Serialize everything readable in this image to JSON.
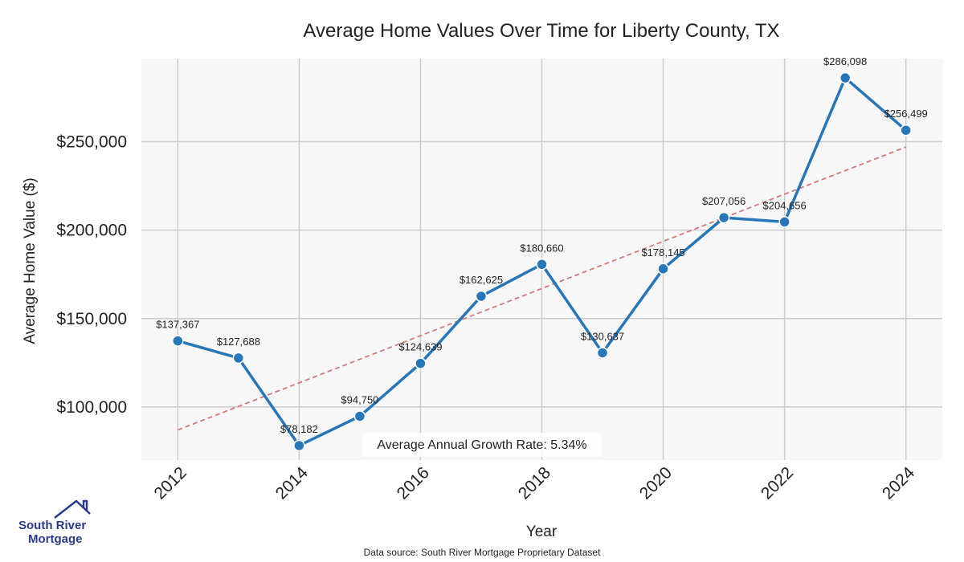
{
  "chart_data": {
    "type": "line",
    "title": "Average Home Values Over Time for Liberty County, TX",
    "xlabel": "Year",
    "ylabel": "Average Home Value ($)",
    "x": [
      2012,
      2013,
      2014,
      2015,
      2016,
      2017,
      2018,
      2019,
      2020,
      2021,
      2022,
      2023,
      2024
    ],
    "values": [
      137367,
      127688,
      78182,
      94750,
      124639,
      162625,
      180660,
      130637,
      178145,
      207056,
      204656,
      286098,
      256499
    ],
    "data_labels": [
      "$137,367",
      "$127,688",
      "$78,182",
      "$94,750",
      "$124,639",
      "$162,625",
      "$180,660",
      "$130,637",
      "$178,145",
      "$207,056",
      "$204,656",
      "$286,098",
      "$256,499"
    ],
    "xticks": [
      "2012",
      "2014",
      "2016",
      "2018",
      "2020",
      "2022",
      "2024"
    ],
    "xtick_values": [
      2012,
      2014,
      2016,
      2018,
      2020,
      2022,
      2024
    ],
    "yticks": [
      "$100,000",
      "$150,000",
      "$200,000",
      "$250,000"
    ],
    "ytick_values": [
      100000,
      150000,
      200000,
      250000
    ],
    "xlim": [
      2011.4,
      2024.6
    ],
    "ylim": [
      70000,
      297000
    ],
    "trend": {
      "start": [
        2012,
        87000
      ],
      "end": [
        2024,
        247000
      ],
      "style": "dashed",
      "color": "#d07a7a"
    },
    "annotation": "Average Annual Growth Rate: 5.34%",
    "grid": true,
    "line_color": "#2776b8",
    "background": "#f7f7f7"
  },
  "footer": {
    "source": "Data source: South River Mortgage Proprietary Dataset"
  },
  "logo": {
    "line1": "South River",
    "line2": "Mortgage",
    "color": "#2b3a8c"
  }
}
